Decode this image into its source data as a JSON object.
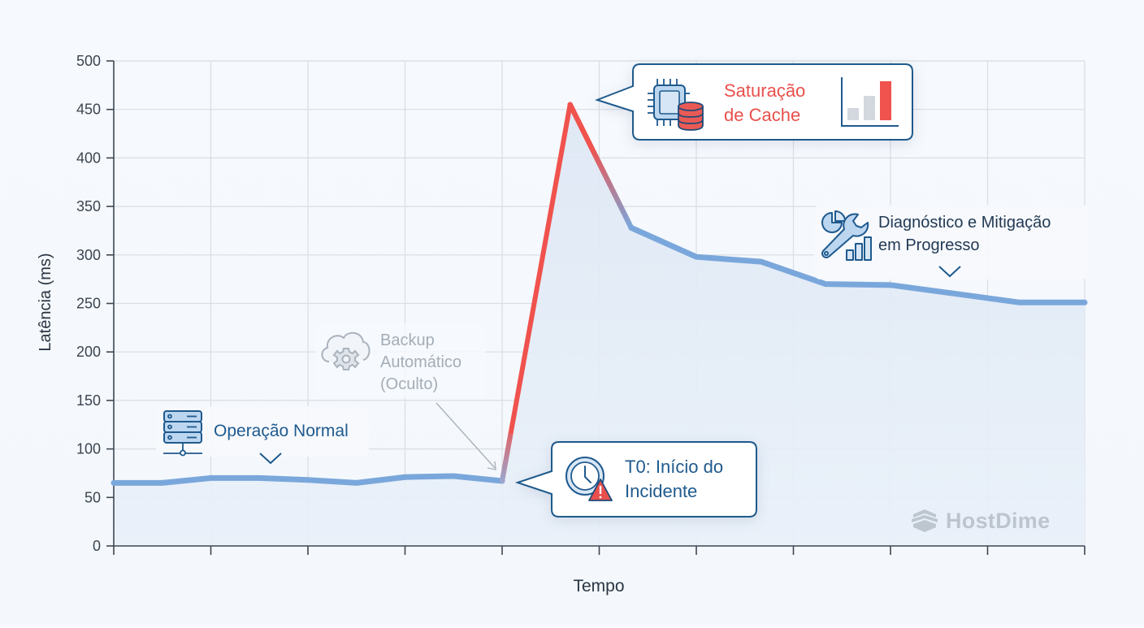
{
  "chart_data": {
    "type": "line",
    "title": "",
    "xlabel": "Tempo",
    "ylabel": "Latência (ms)",
    "ylim": [
      0,
      500
    ],
    "yticks": [
      0,
      50,
      100,
      150,
      200,
      250,
      300,
      350,
      400,
      450,
      500
    ],
    "x_tick_count": 11,
    "grid": true,
    "legend": null,
    "series": [
      {
        "name": "Latência",
        "x": [
          0,
          0.5,
          1,
          1.5,
          2,
          2.5,
          3,
          3.5,
          4,
          4.7,
          5.33,
          6,
          6.67,
          7.33,
          8,
          8.67,
          9.33,
          10
        ],
        "values": [
          65,
          65,
          70,
          70,
          68,
          65,
          71,
          72,
          67,
          455,
          328,
          298,
          293,
          270,
          269,
          260,
          251,
          251
        ]
      }
    ],
    "annotations": [
      {
        "id": "normal",
        "text": "Operação Normal",
        "x": 1.6,
        "y": 110
      },
      {
        "id": "backup",
        "text": "Backup Automático (Oculto)",
        "x": 4,
        "y": 67
      },
      {
        "id": "t0",
        "text": "T0: Início do Incidente",
        "x": 4,
        "y": 67
      },
      {
        "id": "cache",
        "text": "Saturação de Cache",
        "x": 4.7,
        "y": 455
      },
      {
        "id": "diag",
        "text": "Diagnóstico e Mitigação em Progresso",
        "x": 8.5,
        "y": 300
      }
    ],
    "colors": {
      "line_normal": "#7aa7db",
      "line_incident": "#f0524d",
      "area_fill": "#e6eef8"
    }
  },
  "axes": {
    "ylabel": "Latência (ms)",
    "xlabel": "Tempo",
    "yticks": [
      "0",
      "50",
      "100",
      "150",
      "200",
      "250",
      "300",
      "350",
      "400",
      "450",
      "500"
    ]
  },
  "annotations": {
    "normal": {
      "label": "Operação Normal",
      "icon": "server-icon"
    },
    "backup": {
      "line1": "Backup",
      "line2": "Automático",
      "line3": "(Oculto)",
      "icon": "cloud-gear-icon"
    },
    "t0": {
      "line1": "T0: Início do",
      "line2": "Incidente",
      "icon": "clock-warning-icon"
    },
    "cache": {
      "line1": "Saturação",
      "line2": "de Cache",
      "icon": "cpu-database-icon",
      "chart_icon": "bar-chart-icon"
    },
    "diag": {
      "line1": "Diagnóstico e Mitigação",
      "line2": "em Progresso",
      "icon": "wrench-chart-icon"
    }
  },
  "watermark": {
    "text": "HostDime"
  }
}
